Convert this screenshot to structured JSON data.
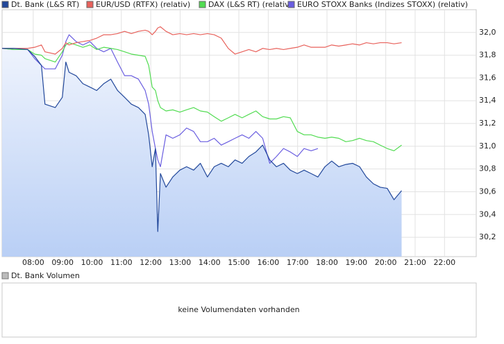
{
  "chart_data": {
    "type": "line",
    "x": [
      6.94,
      7.34,
      7.81,
      8.05,
      8.28,
      8.4,
      8.75,
      8.99,
      9.11,
      9.22,
      9.46,
      9.69,
      9.93,
      10.16,
      10.4,
      10.64,
      10.87,
      11.11,
      11.34,
      11.58,
      11.81,
      11.93,
      12.05,
      12.16,
      12.24,
      12.33,
      12.52,
      12.75,
      12.99,
      13.22,
      13.46,
      13.69,
      13.93,
      14.16,
      14.4,
      14.64,
      14.87,
      15.11,
      15.34,
      15.58,
      15.81,
      16.05,
      16.28,
      16.52,
      16.75,
      16.99,
      17.22,
      17.46,
      17.69,
      17.93,
      18.16,
      18.4,
      18.64,
      18.87,
      19.11,
      19.34,
      19.58,
      19.81,
      20.05,
      20.28,
      20.54
    ],
    "xlim": [
      6.94,
      23.08
    ],
    "xticks": [
      {
        "value": 8,
        "label": "08:00"
      },
      {
        "value": 9,
        "label": "09:00"
      },
      {
        "value": 10,
        "label": "10:00"
      },
      {
        "value": 11,
        "label": "11:00"
      },
      {
        "value": 12,
        "label": "12:00"
      },
      {
        "value": 13,
        "label": "13:00"
      },
      {
        "value": 14,
        "label": "14:00"
      },
      {
        "value": 15,
        "label": "15:00"
      },
      {
        "value": 16,
        "label": "16:00"
      },
      {
        "value": 17,
        "label": "17:00"
      },
      {
        "value": 18,
        "label": "18:00"
      },
      {
        "value": 19,
        "label": "19:00"
      },
      {
        "value": 20,
        "label": "20:00"
      },
      {
        "value": 21,
        "label": "21:00"
      },
      {
        "value": 22,
        "label": "22:00"
      }
    ],
    "ylim": [
      30.03,
      32.2
    ],
    "yticks": [
      {
        "value": 30.2,
        "label": "30,2"
      },
      {
        "value": 30.4,
        "label": "30,4"
      },
      {
        "value": 30.6,
        "label": "30,6"
      },
      {
        "value": 30.8,
        "label": "30,8"
      },
      {
        "value": 31.0,
        "label": "31,0"
      },
      {
        "value": 31.2,
        "label": "31,2"
      },
      {
        "value": 31.4,
        "label": "31,4"
      },
      {
        "value": 31.6,
        "label": "31,6"
      },
      {
        "value": 31.8,
        "label": "31,8"
      },
      {
        "value": 32.0,
        "label": "32,0"
      }
    ],
    "grid": true,
    "legend": "top",
    "series": [
      {
        "name": "Dt. Bank (L&S RT)",
        "color": "#21479a",
        "area": true,
        "values": [
          31.86,
          31.86,
          31.85,
          31.79,
          31.71,
          31.37,
          31.34,
          31.43,
          31.74,
          31.65,
          31.62,
          31.55,
          31.52,
          31.49,
          31.55,
          31.59,
          31.49,
          31.43,
          31.37,
          31.34,
          31.28,
          31.1,
          30.82,
          30.98,
          30.25,
          30.76,
          30.64,
          30.73,
          30.79,
          30.82,
          30.79,
          30.85,
          30.73,
          30.82,
          30.85,
          30.82,
          30.88,
          30.85,
          30.91,
          30.95,
          31.01,
          30.88,
          30.82,
          30.85,
          30.79,
          30.76,
          30.79,
          30.76,
          30.73,
          30.82,
          30.87,
          30.82,
          30.84,
          30.85,
          30.82,
          30.73,
          30.67,
          30.64,
          30.63,
          30.53,
          30.61
        ]
      },
      {
        "name": "EUR/USD (RTFX) (relativ)",
        "color": "#e8625c",
        "values": [
          31.86,
          31.86,
          31.86,
          31.87,
          31.89,
          31.83,
          31.81,
          31.86,
          31.91,
          31.89,
          31.91,
          31.92,
          31.93,
          31.95,
          31.98,
          31.98,
          31.99,
          32.01,
          31.99,
          32.01,
          32.02,
          32.01,
          31.98,
          32.01,
          32.04,
          32.05,
          32.01,
          31.98,
          31.99,
          31.98,
          31.99,
          31.98,
          31.99,
          31.98,
          31.95,
          31.86,
          31.81,
          31.83,
          31.85,
          31.83,
          31.86,
          31.85,
          31.86,
          31.85,
          31.86,
          31.87,
          31.89,
          31.87,
          31.87,
          31.87,
          31.89,
          31.88,
          31.89,
          31.9,
          31.89,
          31.91,
          31.9,
          31.91,
          31.91,
          31.9,
          31.91
        ]
      },
      {
        "name": "DAX (L&S RT) (relativ)",
        "color": "#52dc52",
        "values": [
          31.86,
          31.85,
          31.85,
          31.81,
          31.8,
          31.77,
          31.74,
          31.83,
          31.89,
          31.91,
          31.89,
          31.87,
          31.89,
          31.85,
          31.87,
          31.86,
          31.85,
          31.83,
          31.81,
          31.8,
          31.79,
          31.71,
          31.52,
          31.49,
          31.4,
          31.34,
          31.31,
          31.32,
          31.3,
          31.32,
          31.34,
          31.31,
          31.3,
          31.26,
          31.22,
          31.25,
          31.28,
          31.25,
          31.28,
          31.31,
          31.26,
          31.24,
          31.24,
          31.26,
          31.25,
          31.13,
          31.1,
          31.1,
          31.08,
          31.07,
          31.08,
          31.07,
          31.04,
          31.05,
          31.07,
          31.05,
          31.04,
          31.01,
          30.98,
          30.96,
          31.01
        ]
      },
      {
        "name": "EURO STOXX Banks (Indizes STOXX) (relativ)",
        "color": "#6a5ee0",
        "values": [
          31.86,
          31.85,
          31.85,
          31.77,
          31.71,
          31.68,
          31.68,
          31.8,
          31.92,
          31.98,
          31.92,
          31.89,
          31.92,
          31.86,
          31.83,
          31.86,
          31.74,
          31.62,
          31.62,
          31.59,
          31.49,
          31.37,
          31.13,
          30.98,
          30.88,
          30.82,
          31.1,
          31.07,
          31.1,
          31.16,
          31.13,
          31.04,
          31.04,
          31.07,
          31.01,
          31.04,
          31.07,
          31.1,
          31.07,
          31.13,
          31.07,
          30.85,
          30.91,
          30.98,
          30.95,
          30.91,
          30.98,
          30.96,
          30.98,
          null,
          null,
          null,
          null,
          null,
          null,
          null,
          null,
          null,
          null,
          null,
          null
        ]
      }
    ]
  },
  "volume_panel": {
    "legend": "Dt. Bank Volumen",
    "color": "#bbbbbb",
    "message": "keine Volumendaten vorhanden"
  }
}
